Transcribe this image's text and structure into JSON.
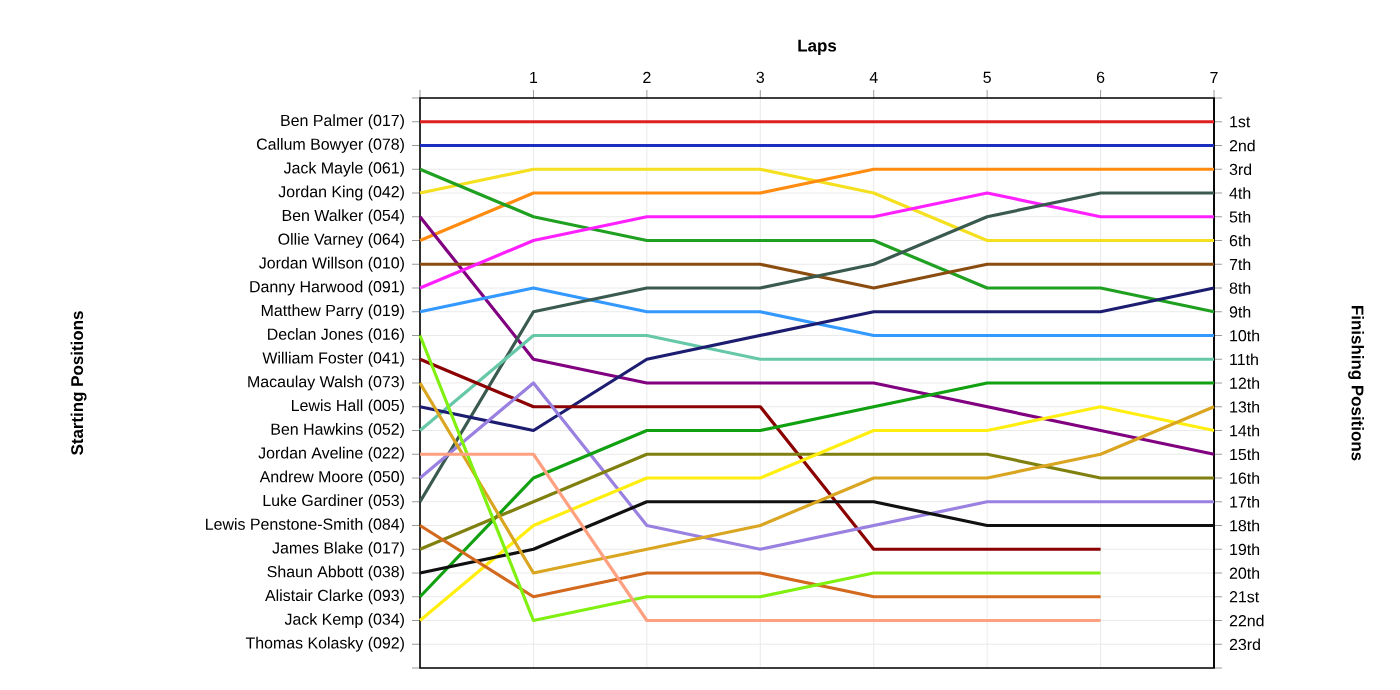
{
  "chart_data": {
    "type": "line",
    "xlabel": "Laps",
    "y2label": "Finishing Positions",
    "x": [
      0,
      1,
      2,
      3,
      4,
      5,
      6,
      7
    ],
    "xlim": [
      0,
      7
    ],
    "xticks": [
      {
        "value": 0,
        "label": null
      },
      1,
      2,
      3,
      4,
      5,
      6,
      7
    ],
    "annotations": [
      "Ben Palmer (017)",
      "Callum Bowyer (078)",
      "Jack Mayle (061)",
      "Jordan King (042)",
      "Ben Walker (054)",
      "Ollie Varney (064)",
      "Jordan Willson (010)",
      "Danny Harwood (091)",
      "Matthew Parry (019)",
      "Declan Jones (016)",
      "William Foster (041)",
      "Macaulay Walsh (073)",
      "Lewis Hall (005)",
      "Ben Hawkins (052)",
      "Jordan Aveline (022)",
      "Andrew Moore (050)",
      "Luke Gardiner (053)",
      "Lewis Penstone-Smith (084)",
      "James Blake (017)",
      "Shaun Abbott (038)",
      "Alistair Clarke (093)",
      "Jack Kemp (034)",
      "Thomas Kolasky (092)",
      "Starting Positions"
    ],
    "y2lim": [
      24,
      0
    ],
    "y2ticks": [
      {
        "value": 0,
        "label": null
      },
      {
        "value": 1,
        "label": "1st"
      },
      {
        "value": 2,
        "label": "2nd"
      },
      {
        "value": 3,
        "label": "3rd"
      },
      {
        "value": 4,
        "label": "4th"
      },
      {
        "value": 5,
        "label": "5th"
      },
      {
        "value": 6,
        "label": "6th"
      },
      {
        "value": 7,
        "label": "7th"
      },
      {
        "value": 8,
        "label": "8th"
      },
      {
        "value": 9,
        "label": "9th"
      },
      {
        "value": 10,
        "label": "10th"
      },
      {
        "value": 11,
        "label": "11th"
      },
      {
        "value": 12,
        "label": "12th"
      },
      {
        "value": 13,
        "label": "13th"
      },
      {
        "value": 14,
        "label": "14th"
      },
      {
        "value": 15,
        "label": "15th"
      },
      {
        "value": 16,
        "label": "16th"
      },
      {
        "value": 17,
        "label": "17th"
      },
      {
        "value": 18,
        "label": "18th"
      },
      {
        "value": 19,
        "label": "19th"
      },
      {
        "value": 20,
        "label": "20th"
      },
      {
        "value": 21,
        "label": "21st"
      },
      {
        "value": 22,
        "label": "22nd"
      },
      {
        "value": 23,
        "label": "23rd"
      },
      {
        "value": 24,
        "label": null
      }
    ],
    "grid": true,
    "line_style": "solid",
    "series": [
      {
        "axis": "y2",
        "color": "#e02020",
        "values": [
          1,
          1,
          1,
          1,
          1,
          1,
          1,
          1
        ]
      },
      {
        "axis": "y2",
        "color": "#1c2ec0",
        "values": [
          2,
          2,
          2,
          2,
          2,
          2,
          2,
          2
        ]
      },
      {
        "axis": "y2",
        "color": "#f5e020",
        "values": [
          4,
          3,
          3,
          3,
          4,
          6,
          6,
          6
        ]
      },
      {
        "axis": "y2",
        "color": "#ff8c10",
        "values": [
          6,
          4,
          4,
          4,
          3,
          3,
          3,
          3
        ]
      },
      {
        "axis": "y2",
        "color": "#20a020",
        "values": [
          3,
          5,
          6,
          6,
          6,
          8,
          8,
          9
        ]
      },
      {
        "axis": "y2",
        "color": "#800080",
        "values": [
          5,
          11,
          12,
          12,
          12,
          13,
          14,
          15
        ]
      },
      {
        "axis": "y2",
        "color": "#8b4c10",
        "values": [
          7,
          7,
          7,
          7,
          8,
          7,
          7,
          7
        ]
      },
      {
        "axis": "y2",
        "color": "#ff20ff",
        "values": [
          8,
          6,
          5,
          5,
          5,
          4,
          5,
          5
        ]
      },
      {
        "axis": "y2",
        "color": "#3399ff",
        "values": [
          9,
          8,
          9,
          9,
          10,
          10,
          10,
          10
        ]
      },
      {
        "axis": "y2",
        "color": "#3a5a50",
        "values": [
          17,
          9,
          8,
          8,
          7,
          5,
          4,
          4
        ]
      },
      {
        "axis": "y2",
        "color": "#66c8a8",
        "values": [
          14,
          10,
          10,
          11,
          11,
          11,
          11,
          11
        ]
      },
      {
        "axis": "y2",
        "color": "#1c1c70",
        "values": [
          13,
          14,
          11,
          10,
          9,
          9,
          9,
          8
        ]
      },
      {
        "axis": "y2",
        "color": "#8b0000",
        "values": [
          11,
          13,
          13,
          13,
          19,
          19,
          19,
          null
        ]
      },
      {
        "axis": "y2",
        "color": "#9a80e0",
        "values": [
          16,
          12,
          18,
          19,
          18,
          17,
          17,
          17
        ]
      },
      {
        "axis": "y2",
        "color": "#10a010",
        "values": [
          21,
          16,
          14,
          14,
          13,
          12,
          12,
          12
        ]
      },
      {
        "axis": "y2",
        "color": "#808010",
        "values": [
          19,
          17,
          15,
          15,
          15,
          15,
          16,
          16
        ]
      },
      {
        "axis": "y2",
        "color": "#ffee10",
        "values": [
          22,
          18,
          16,
          16,
          14,
          14,
          13,
          14
        ]
      },
      {
        "axis": "y2",
        "color": "#101010",
        "values": [
          20,
          19,
          17,
          17,
          17,
          18,
          18,
          18
        ]
      },
      {
        "axis": "y2",
        "color": "#daa520",
        "values": [
          12,
          20,
          19,
          18,
          16,
          16,
          15,
          13
        ]
      },
      {
        "axis": "y2",
        "color": "#d2691e",
        "values": [
          18,
          21,
          20,
          20,
          21,
          21,
          21,
          null
        ]
      },
      {
        "axis": "y2",
        "color": "#80f010",
        "values": [
          10,
          22,
          21,
          21,
          20,
          20,
          20,
          null
        ]
      },
      {
        "axis": "y2",
        "color": "#ffa080",
        "values": [
          15,
          15,
          22,
          22,
          22,
          22,
          22,
          null
        ]
      }
    ]
  }
}
